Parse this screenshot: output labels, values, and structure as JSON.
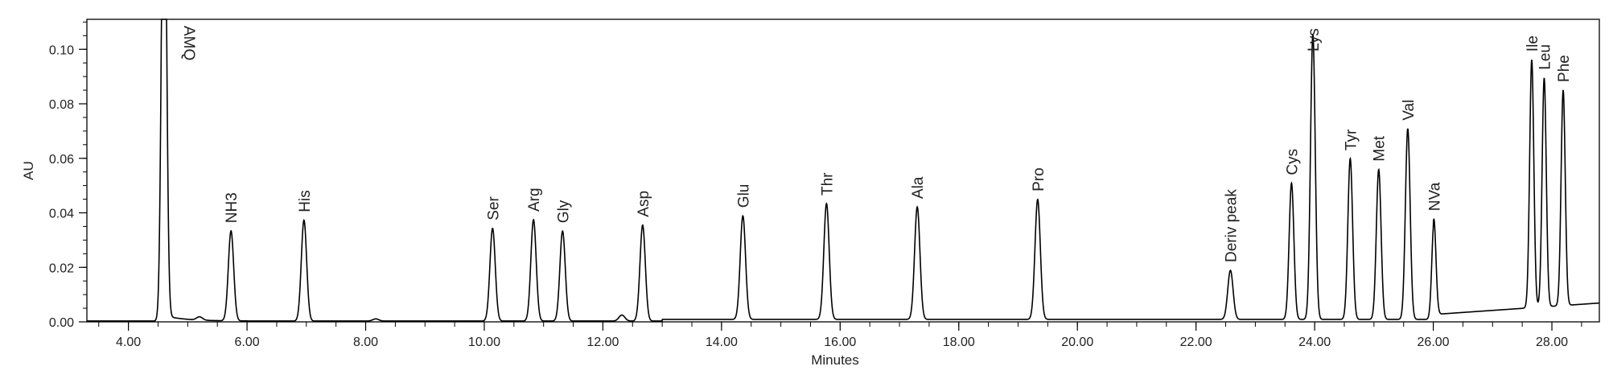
{
  "chart_data": {
    "type": "line",
    "title": "",
    "xlabel": "Minutes",
    "ylabel": "AU",
    "xlim": [
      3.3,
      28.8
    ],
    "ylim": [
      0.0,
      0.111
    ],
    "x_ticks": [
      4.0,
      6.0,
      8.0,
      10.0,
      12.0,
      14.0,
      16.0,
      18.0,
      20.0,
      22.0,
      24.0,
      26.0,
      28.0
    ],
    "x_tick_labels": [
      "4.00",
      "6.00",
      "8.00",
      "10.00",
      "12.00",
      "14.00",
      "16.00",
      "18.00",
      "20.00",
      "22.00",
      "24.00",
      "26.00",
      "28.00"
    ],
    "x_minor_step": 0.5,
    "y_ticks": [
      0.0,
      0.02,
      0.04,
      0.06,
      0.08,
      0.1
    ],
    "y_tick_labels": [
      "0.00",
      "0.02",
      "0.04",
      "0.06",
      "0.08",
      "0.10"
    ],
    "y_minor_step": 0.005,
    "grid": false,
    "color": "#000000",
    "peaks": [
      {
        "label": "AMQ",
        "x": 4.6,
        "y": 0.2,
        "width": 0.04
      },
      {
        "label": "NH3",
        "x": 5.73,
        "y": 0.033,
        "width": 0.045
      },
      {
        "label": "His",
        "x": 6.96,
        "y": 0.037,
        "width": 0.045
      },
      {
        "label": "Ser",
        "x": 10.14,
        "y": 0.034,
        "width": 0.045
      },
      {
        "label": "Arg",
        "x": 10.83,
        "y": 0.0372,
        "width": 0.045
      },
      {
        "label": "Gly",
        "x": 11.32,
        "y": 0.033,
        "width": 0.045
      },
      {
        "label": "Asp",
        "x": 12.67,
        "y": 0.0352,
        "width": 0.045
      },
      {
        "label": "Glu",
        "x": 14.36,
        "y": 0.038,
        "width": 0.045
      },
      {
        "label": "Thr",
        "x": 15.77,
        "y": 0.0425,
        "width": 0.045
      },
      {
        "label": "Ala",
        "x": 17.3,
        "y": 0.0413,
        "width": 0.045
      },
      {
        "label": "Pro",
        "x": 19.33,
        "y": 0.044,
        "width": 0.045
      },
      {
        "label": "Deriv peak",
        "x": 22.58,
        "y": 0.018,
        "width": 0.045
      },
      {
        "label": "Cys",
        "x": 23.61,
        "y": 0.05,
        "width": 0.04
      },
      {
        "label": "Lys",
        "x": 23.97,
        "y": 0.1045,
        "width": 0.04
      },
      {
        "label": "Tyr",
        "x": 24.6,
        "y": 0.059,
        "width": 0.04
      },
      {
        "label": "Met",
        "x": 25.08,
        "y": 0.055,
        "width": 0.04
      },
      {
        "label": "Val",
        "x": 25.57,
        "y": 0.07,
        "width": 0.04
      },
      {
        "label": "NVa",
        "x": 26.01,
        "y": 0.035,
        "width": 0.035
      },
      {
        "label": "Ile",
        "x": 27.66,
        "y": 0.091,
        "width": 0.035
      },
      {
        "label": "Leu",
        "x": 27.87,
        "y": 0.084,
        "width": 0.035
      },
      {
        "label": "Phe",
        "x": 28.19,
        "y": 0.079,
        "width": 0.035
      }
    ],
    "minor_bumps": [
      {
        "x": 5.2,
        "y": 0.0012
      },
      {
        "x": 8.17,
        "y": 0.0008
      },
      {
        "x": 12.32,
        "y": 0.0022
      }
    ]
  }
}
